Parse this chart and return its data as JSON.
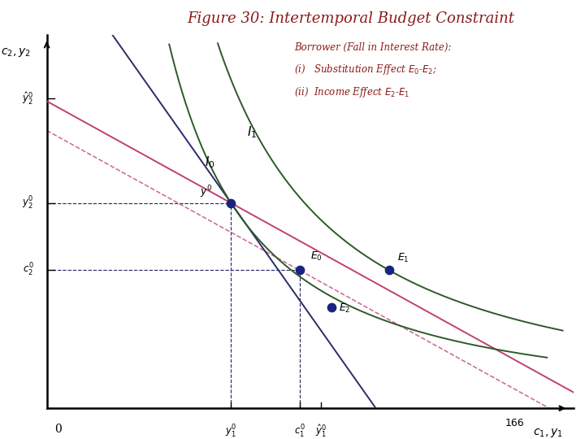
{
  "title": "Figure 30: Intertemporal Budget Constraint",
  "title_color": "#8B1A1A",
  "title_fontsize": 13,
  "annotation_color": "#8B1A1A",
  "borrower_text": "Borrower (Fall in Interest Rate):",
  "sub_i": "(i)   Substitution Effect $E_0$-$E_2$;",
  "sub_ii": "(ii)  Income Effect $E_2$-$E_1$",
  "xlim": [
    0,
    100
  ],
  "ylim": [
    0,
    100
  ],
  "y1_0": 35,
  "y2_0": 55,
  "c1_0": 48,
  "c2_0": 37,
  "E1_x": 65,
  "E1_y": 37,
  "E2_x": 54,
  "E2_y": 27,
  "y1hat": 52,
  "y2hat": 83,
  "line1_color": "#2b2b6b",
  "line2_color": "#c04070",
  "dashed_bc_color": "#c04070",
  "ic_color": "#2d5a27",
  "dot_color": "#1a237e",
  "dashed_ref_color": "#2b2b6b",
  "slope1": -2.0,
  "slope2": -0.78
}
